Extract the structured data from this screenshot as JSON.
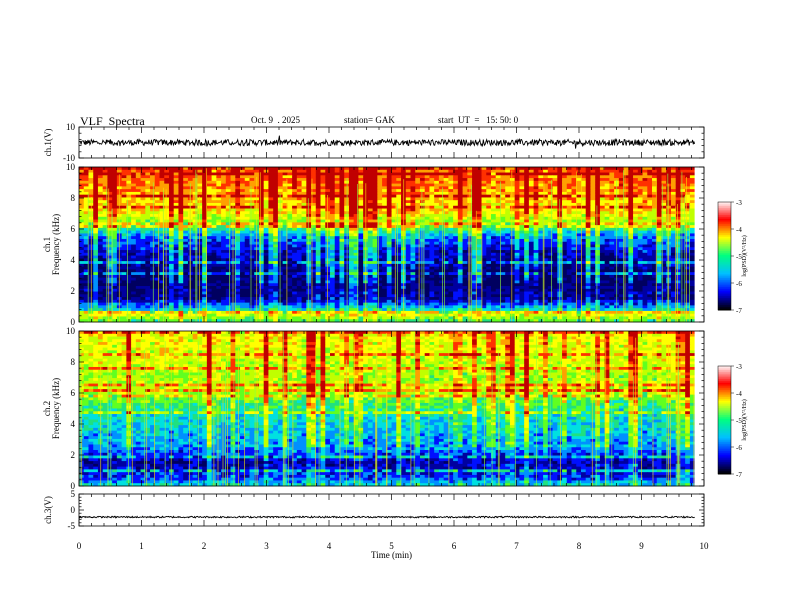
{
  "header": {
    "title": "VLF  Spectra",
    "date": "Oct. 9  . 2025",
    "station": "station= GAK",
    "start": "start  UT  =   15: 50: 0"
  },
  "colors": {
    "waveform": "#000000",
    "colormap": [
      "#000060",
      "#0000a0",
      "#0010ff",
      "#0090ff",
      "#00e0e0",
      "#20e080",
      "#60ff20",
      "#c0ff00",
      "#ffff00",
      "#ffa000",
      "#ff3000",
      "#c00000"
    ]
  },
  "chart_data": [
    {
      "type": "line",
      "name": "ch1-waveform",
      "ylabel": "ch.1(V)",
      "ylim": [
        -10,
        10
      ],
      "yticks": [
        "10",
        "-10"
      ],
      "x_range": [
        0,
        9.85
      ],
      "baseline": 0,
      "noise_amplitude": 2
    },
    {
      "type": "heatmap",
      "name": "ch1-spectrogram",
      "ylabel_top": "ch.1",
      "ylabel": "Frequency  (kHz)",
      "ylim": [
        0,
        10
      ],
      "yticks": [
        "0",
        "2",
        "4",
        "6",
        "8",
        "10"
      ],
      "x_range": [
        0,
        9.85
      ],
      "psd_profile_khz": [
        [
          0,
          -5.2
        ],
        [
          0.5,
          -4.3
        ],
        [
          0.8,
          -5.5
        ],
        [
          1.5,
          -6.6
        ],
        [
          3,
          -6.8
        ],
        [
          4.5,
          -6.4
        ],
        [
          5.5,
          -5.9
        ],
        [
          6.2,
          -4.9
        ],
        [
          7,
          -4.2
        ],
        [
          8.5,
          -3.8
        ],
        [
          10,
          -3.6
        ]
      ],
      "colorbar": {
        "label": "log(PSD)(V²/Hz)",
        "ticks": [
          "-3",
          "-4",
          "-5",
          "-6",
          "-7"
        ],
        "range": [
          -7,
          -3
        ]
      }
    },
    {
      "type": "heatmap",
      "name": "ch2-spectrogram",
      "ylabel_top": "ch.2",
      "ylabel": "Frequency  (kHz)",
      "ylim": [
        0,
        10
      ],
      "yticks": [
        "0",
        "2",
        "4",
        "6",
        "8",
        "10"
      ],
      "x_range": [
        0,
        9.85
      ],
      "psd_profile_khz": [
        [
          0,
          -5.4
        ],
        [
          0.5,
          -6.1
        ],
        [
          1.5,
          -6.5
        ],
        [
          2.5,
          -5.8
        ],
        [
          3.5,
          -5.6
        ],
        [
          4.5,
          -5.4
        ],
        [
          5.8,
          -4.8
        ],
        [
          6.2,
          -4.3
        ],
        [
          7,
          -4.6
        ],
        [
          8.5,
          -4.3
        ],
        [
          10,
          -4.2
        ]
      ],
      "colorbar": {
        "label": "log(PSD)(V²/Hz)",
        "ticks": [
          "-3",
          "-4",
          "-5",
          "-6",
          "-7"
        ],
        "range": [
          -7,
          -3
        ]
      }
    },
    {
      "type": "line",
      "name": "ch3-waveform",
      "ylabel": "ch.3(V)",
      "ylim": [
        -5,
        5
      ],
      "yticks": [
        "5",
        "0",
        "-5"
      ],
      "x_range": [
        0,
        9.85
      ],
      "baseline": -2.2,
      "noise_amplitude": 0.25,
      "xlabel": "Time  (min)",
      "xlim": [
        0,
        10
      ],
      "xticks": [
        "0",
        "1",
        "2",
        "3",
        "4",
        "5",
        "6",
        "7",
        "8",
        "9",
        "10"
      ]
    }
  ]
}
